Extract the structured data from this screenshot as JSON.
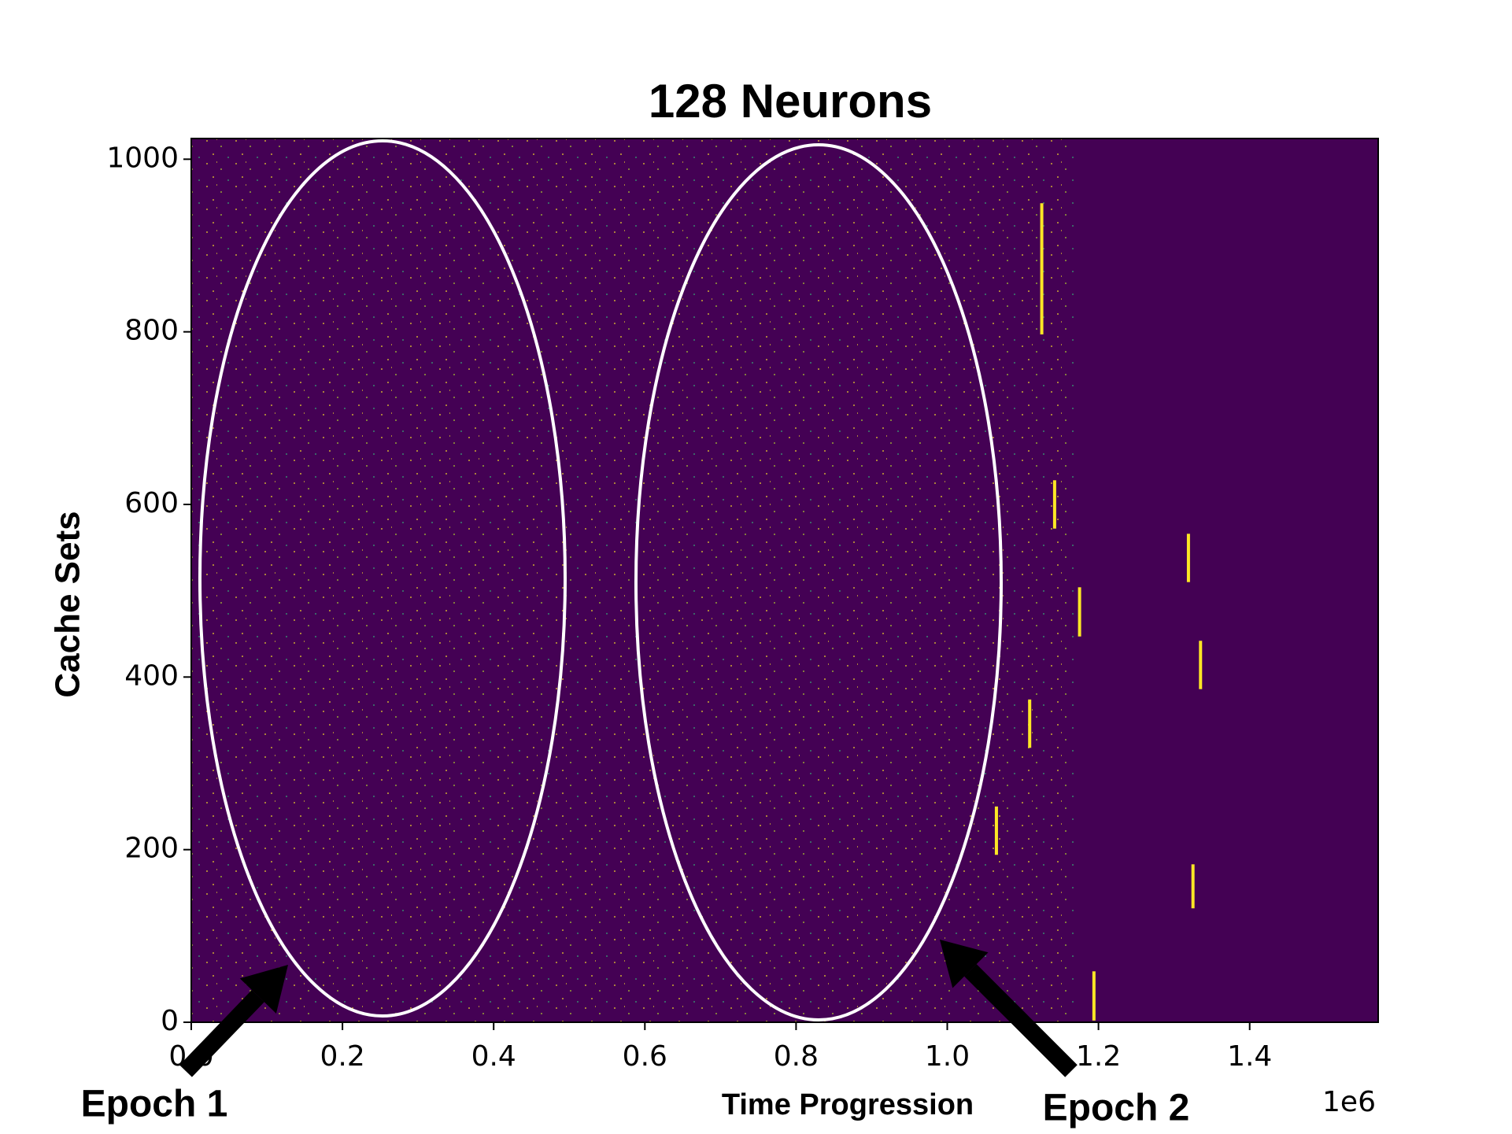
{
  "chart_data": {
    "type": "raster",
    "title": "128 Neurons",
    "x_label": "Time Progression",
    "y_label": "Cache Sets",
    "x_offset_label": "1e6",
    "xlim": [
      0,
      1570000
    ],
    "ylim": [
      0,
      1024
    ],
    "xticks": [
      {
        "value": 0,
        "label": "0.0"
      },
      {
        "value": 200000,
        "label": "0.2"
      },
      {
        "value": 400000,
        "label": "0.4"
      },
      {
        "value": 600000,
        "label": "0.6"
      },
      {
        "value": 800000,
        "label": "0.8"
      },
      {
        "value": 1000000,
        "label": "1.0"
      },
      {
        "value": 1200000,
        "label": "1.2"
      },
      {
        "value": 1400000,
        "label": "1.4"
      }
    ],
    "yticks": [
      0,
      200,
      400,
      600,
      800,
      1000
    ],
    "background_color": "#440154",
    "color": "#fde725",
    "bursts": [
      {
        "x": 1125000,
        "y": [
          797,
          949
        ]
      },
      {
        "x": 1142000,
        "y": [
          572,
          628
        ]
      },
      {
        "x": 1175000,
        "y": [
          447,
          504
        ]
      },
      {
        "x": 1319000,
        "y": [
          510,
          566
        ]
      },
      {
        "x": 1335000,
        "y": [
          386,
          442
        ]
      },
      {
        "x": 1109000,
        "y": [
          318,
          374
        ]
      },
      {
        "x": 1065000,
        "y": [
          194,
          250
        ]
      },
      {
        "x": 1325000,
        "y": [
          132,
          183
        ]
      },
      {
        "x": 1194000,
        "y": [
          2,
          59
        ]
      }
    ],
    "annotations": [
      "Epoch 1",
      "Epoch 2"
    ]
  }
}
